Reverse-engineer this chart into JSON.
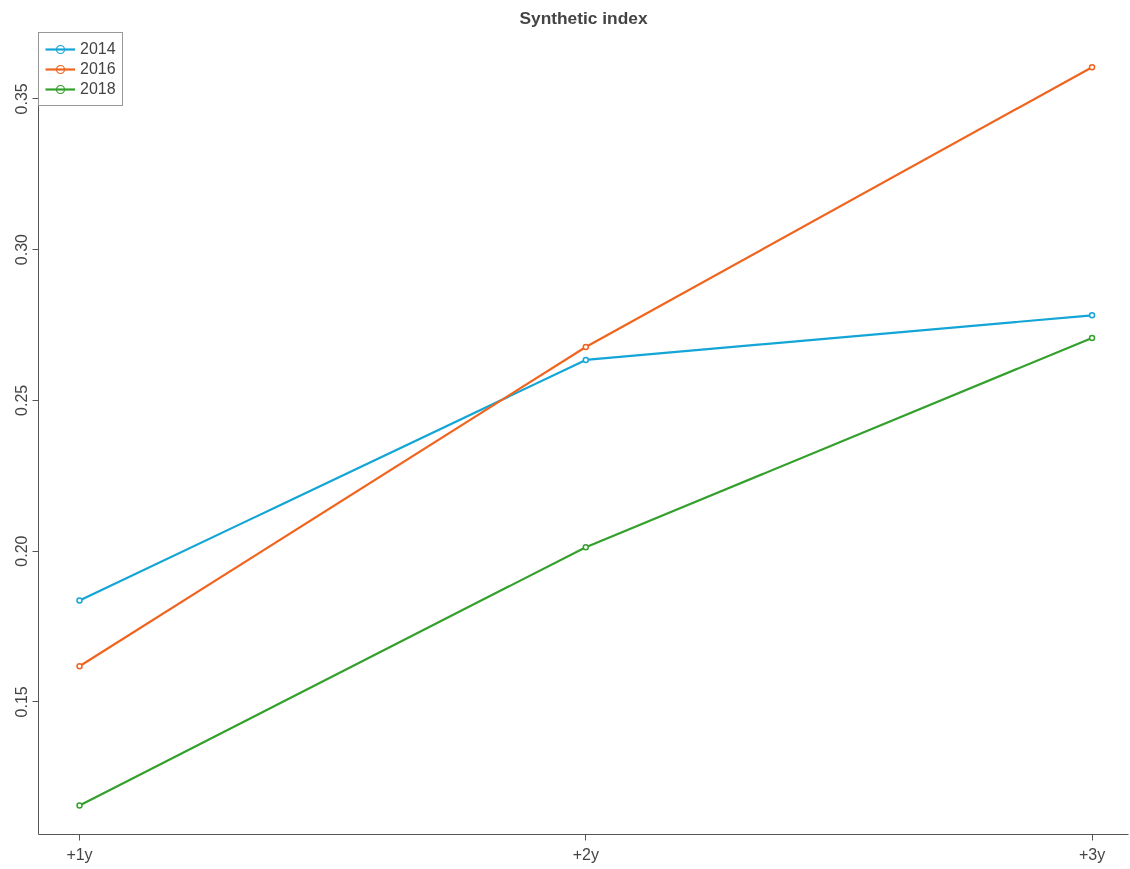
{
  "chart_data": {
    "type": "line",
    "title": "Synthetic index",
    "categories": [
      "+1y",
      "+2y",
      "+3y"
    ],
    "series": [
      {
        "name": "2014",
        "color": "#12a5d6",
        "values": [
          0.1836,
          0.2634,
          0.2782
        ]
      },
      {
        "name": "2016",
        "color": "#f0641e",
        "values": [
          0.1618,
          0.2677,
          0.3605
        ]
      },
      {
        "name": "2018",
        "color": "#33a02c",
        "values": [
          0.1156,
          0.2013,
          0.2707
        ]
      }
    ],
    "ylim": [
      0.106,
      0.372
    ],
    "yticks": [
      0.15,
      {
        "value": 0.2,
        "label": "0.20"
      },
      0.25,
      {
        "value": 0.3,
        "label": "0.30"
      },
      0.35
    ],
    "grid": false,
    "legend": "top left",
    "marker": "circle",
    "line_style": "solid"
  }
}
